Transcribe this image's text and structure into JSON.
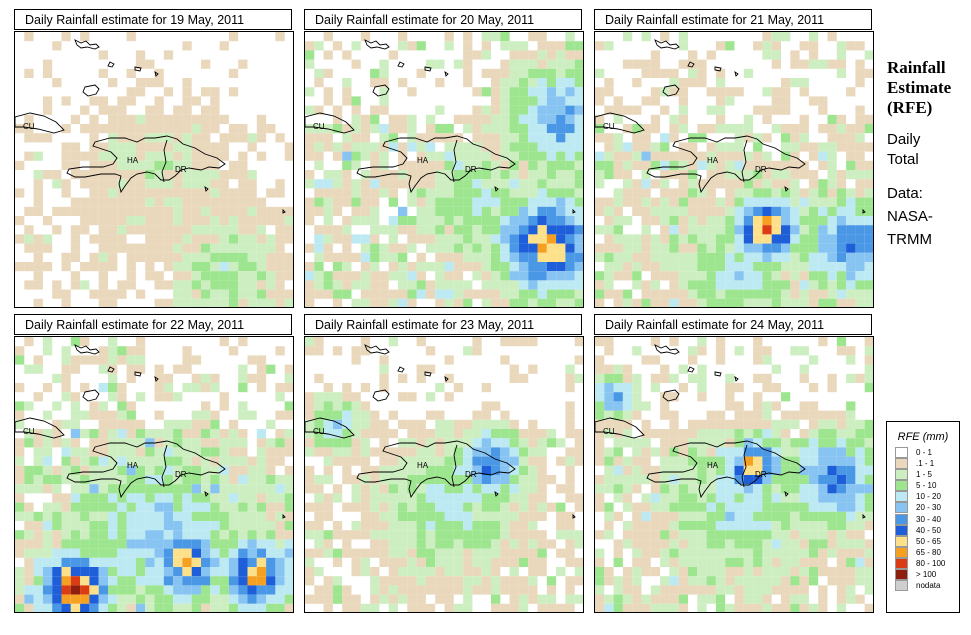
{
  "panels": [
    {
      "title": "Daily Rainfall estimate for  19 May, 2011",
      "seed": 19,
      "intensity": 0.5,
      "cells": []
    },
    {
      "title": "Daily Rainfall estimate for  20 May, 2011",
      "seed": 20,
      "intensity": 1.0,
      "cells": []
    },
    {
      "title": "Daily Rainfall estimate for  21 May, 2011",
      "seed": 21,
      "intensity": 0.9,
      "cells": []
    },
    {
      "title": "Daily Rainfall estimate for  22 May, 2011",
      "seed": 22,
      "intensity": 1.1,
      "cells": []
    },
    {
      "title": "Daily Rainfall estimate for  23 May, 2011",
      "seed": 23,
      "intensity": 0.7,
      "cells": []
    },
    {
      "title": "Daily Rainfall estimate for  24 May, 2011",
      "seed": 24,
      "intensity": 0.9,
      "cells": []
    }
  ],
  "map_labels": {
    "cuba": "CU",
    "haiti": "HA",
    "dominican_republic": "DR"
  },
  "side": {
    "title": "Rainfall\nEstimate\n(RFE)",
    "subtitle": "Daily\nTotal",
    "data": "Data:\nNASA-\nTRMM"
  },
  "legend": {
    "title": "RFE (mm)",
    "items": [
      {
        "label": "0 - 1",
        "color": "#ffffff"
      },
      {
        "label": ".1 - 1",
        "color": "#ead8bc"
      },
      {
        "label": "1 - 5",
        "color": "#cdeec0"
      },
      {
        "label": "5 - 10",
        "color": "#9ee58f"
      },
      {
        "label": "10 - 20",
        "color": "#bce9f2"
      },
      {
        "label": "20 - 30",
        "color": "#88c4f2"
      },
      {
        "label": "30 - 40",
        "color": "#4a97e6"
      },
      {
        "label": "40 - 50",
        "color": "#1e5fd9"
      },
      {
        "label": "50 - 65",
        "color": "#fde18a"
      },
      {
        "label": "65 - 80",
        "color": "#f5a020"
      },
      {
        "label": "80 - 100",
        "color": "#dc3c14"
      },
      {
        "label": "> 100",
        "color": "#8e1e0e"
      },
      {
        "label": "nodata",
        "color": "#cfcfcf"
      }
    ]
  }
}
